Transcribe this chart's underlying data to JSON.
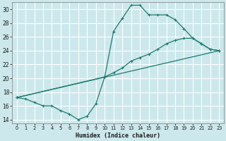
{
  "xlabel": "Humidex (Indice chaleur)",
  "background_color": "#cce8ec",
  "grid_color": "#ffffff",
  "line_color": "#1a7a6e",
  "xlim": [
    -0.5,
    23.5
  ],
  "ylim": [
    13.5,
    31.0
  ],
  "yticks": [
    14,
    16,
    18,
    20,
    22,
    24,
    26,
    28,
    30
  ],
  "xticks": [
    0,
    1,
    2,
    3,
    4,
    5,
    6,
    7,
    8,
    9,
    10,
    11,
    12,
    13,
    14,
    15,
    16,
    17,
    18,
    19,
    20,
    21,
    22,
    23
  ],
  "line1_x": [
    0,
    1,
    2,
    3,
    4,
    5,
    6,
    7,
    8,
    9,
    10,
    11,
    12,
    13,
    14,
    15,
    16,
    17,
    18,
    19,
    20,
    21,
    22,
    23
  ],
  "line1_y": [
    17.2,
    17.0,
    16.5,
    16.0,
    16.0,
    15.3,
    14.8,
    14.0,
    14.5,
    16.3,
    20.2,
    26.8,
    28.7,
    30.6,
    30.6,
    29.2,
    29.2,
    29.2,
    28.5,
    27.2,
    25.8,
    25.0,
    24.2,
    24.0
  ],
  "line2_x": [
    0,
    10,
    11,
    12,
    13,
    14,
    15,
    16,
    17,
    18,
    19,
    20,
    21,
    22,
    23
  ],
  "line2_y": [
    17.2,
    20.2,
    20.8,
    21.5,
    22.5,
    23.0,
    23.5,
    24.2,
    25.0,
    25.5,
    25.8,
    25.8,
    25.0,
    24.2,
    24.0
  ],
  "line3_x": [
    0,
    23
  ],
  "line3_y": [
    17.2,
    24.0
  ]
}
